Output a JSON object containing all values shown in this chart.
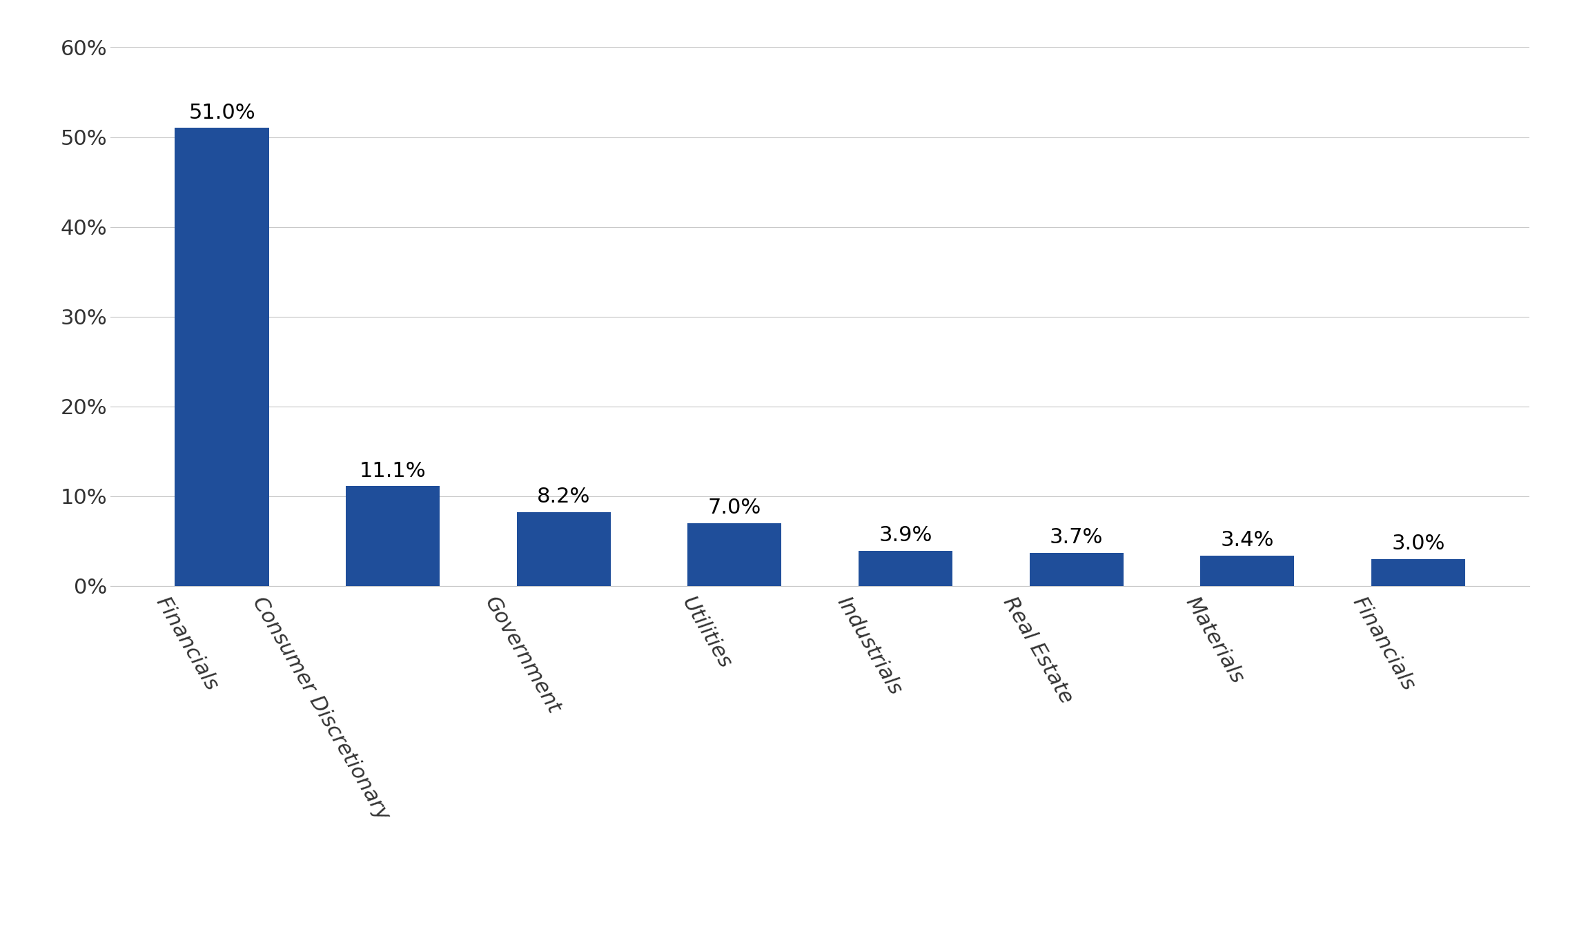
{
  "categories": [
    "Financials",
    "Consumer Discretionary",
    "Government",
    "Utilities",
    "Industrials",
    "Real Estate",
    "Materials",
    "Financials"
  ],
  "values": [
    51.0,
    11.1,
    8.2,
    7.0,
    3.9,
    3.7,
    3.4,
    3.0
  ],
  "labels": [
    "51.0%",
    "11.1%",
    "8.2%",
    "7.0%",
    "3.9%",
    "3.7%",
    "3.4%",
    "3.0%"
  ],
  "bar_color": "#1F4E9A",
  "background_color": "#FFFFFF",
  "grid_color": "#C8C8C8",
  "ylim": [
    0,
    60
  ],
  "yticks": [
    0,
    10,
    20,
    30,
    40,
    50,
    60
  ],
  "ytick_labels": [
    "0%",
    "10%",
    "20%",
    "30%",
    "40%",
    "50%",
    "60%"
  ],
  "tick_fontsize": 22,
  "bar_label_fontsize": 22,
  "xlabel_rotation": -60,
  "bar_width": 0.55
}
